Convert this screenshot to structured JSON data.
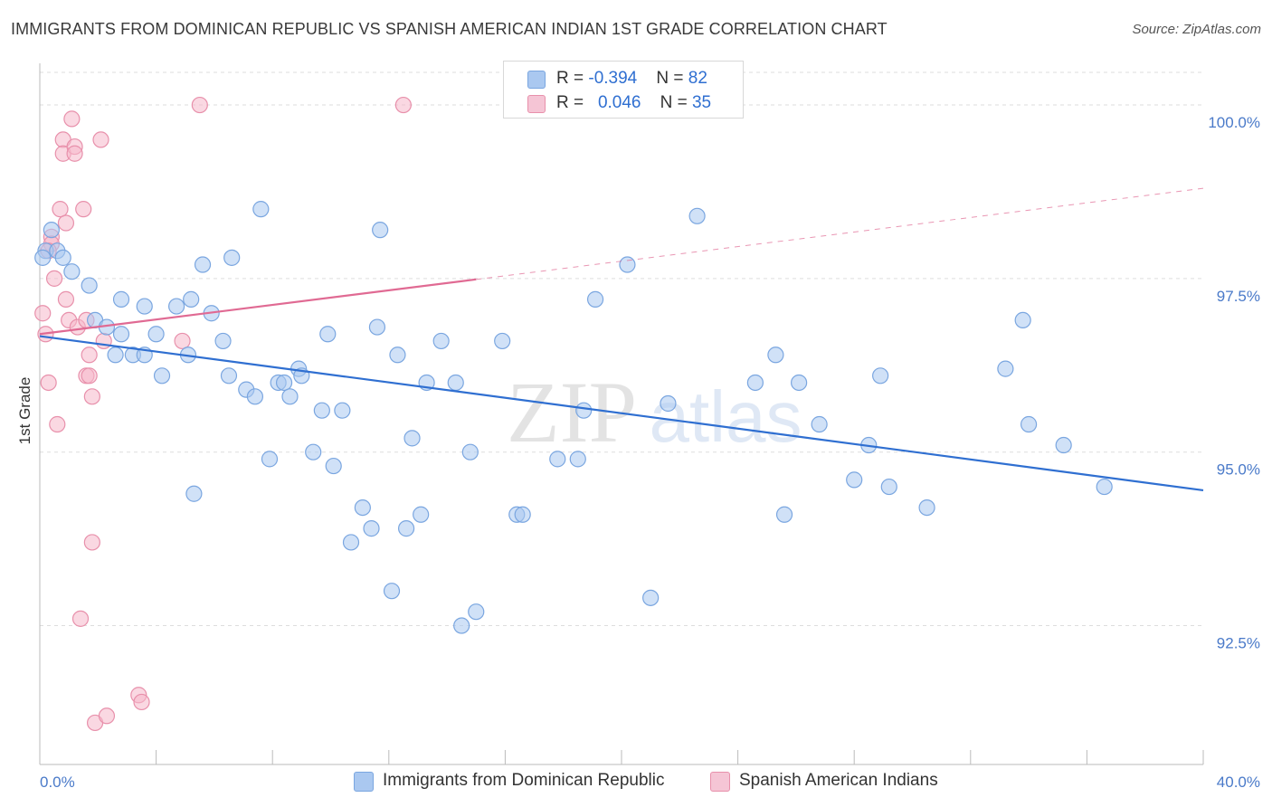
{
  "title": "IMMIGRANTS FROM DOMINICAN REPUBLIC VS SPANISH AMERICAN INDIAN 1ST GRADE CORRELATION CHART",
  "source": "Source: ZipAtlas.com",
  "watermark": {
    "zip": "ZIP",
    "atlas": "atlas"
  },
  "colors": {
    "blue_fill": "#aac8f0",
    "blue_stroke": "#7aa6e0",
    "blue_line": "#2f6fd1",
    "pink_fill": "#f5b8cb",
    "pink_stroke": "#e890ab",
    "pink_line": "#e06a93",
    "tick": "#4a7ac9",
    "grid": "#dddddd"
  },
  "legend": {
    "rows": [
      {
        "r_label": "R = ",
        "r_value": "-0.394",
        "n_label": "N = ",
        "n_value": "82",
        "color": "blue"
      },
      {
        "r_label": "R = ",
        "r_value": "0.046",
        "n_label": "N = ",
        "n_value": "35",
        "color": "pink"
      }
    ]
  },
  "chart_data": {
    "type": "scatter",
    "title": "IMMIGRANTS FROM DOMINICAN REPUBLIC VS SPANISH AMERICAN INDIAN 1ST GRADE CORRELATION CHART",
    "xlabel": "",
    "ylabel": "1st Grade",
    "xlim": [
      0,
      40
    ],
    "ylim": [
      90.5,
      100.6
    ],
    "x_tick_labels": [
      "0.0%",
      "40.0%"
    ],
    "y_ticks": [
      92.5,
      95.0,
      97.5,
      100.0
    ],
    "y_tick_labels": [
      "92.5%",
      "95.0%",
      "97.5%",
      "100.0%"
    ],
    "grid": true,
    "legend_position": "top-center",
    "series": [
      {
        "name": "Immigrants from Dominican Republic",
        "color": "blue",
        "trend": {
          "x0": 0,
          "y0": 96.67,
          "x1": 40,
          "y1": 94.45,
          "dashed_from": null
        },
        "points": [
          [
            0.2,
            97.9
          ],
          [
            0.4,
            98.2
          ],
          [
            0.6,
            97.9
          ],
          [
            0.8,
            97.8
          ],
          [
            1.1,
            97.6
          ],
          [
            1.7,
            97.4
          ],
          [
            1.9,
            96.9
          ],
          [
            2.3,
            96.8
          ],
          [
            2.6,
            96.4
          ],
          [
            2.8,
            96.7
          ],
          [
            2.8,
            97.2
          ],
          [
            3.2,
            96.4
          ],
          [
            3.6,
            96.4
          ],
          [
            3.6,
            97.1
          ],
          [
            4.0,
            96.7
          ],
          [
            4.2,
            96.1
          ],
          [
            4.7,
            97.1
          ],
          [
            5.1,
            96.4
          ],
          [
            5.2,
            97.2
          ],
          [
            5.3,
            94.4
          ],
          [
            5.6,
            97.7
          ],
          [
            5.9,
            97.0
          ],
          [
            6.3,
            96.6
          ],
          [
            6.5,
            96.1
          ],
          [
            6.6,
            97.8
          ],
          [
            7.1,
            95.9
          ],
          [
            7.4,
            95.8
          ],
          [
            7.6,
            98.5
          ],
          [
            7.9,
            94.9
          ],
          [
            8.2,
            96.0
          ],
          [
            8.4,
            96.0
          ],
          [
            8.6,
            95.8
          ],
          [
            8.9,
            96.2
          ],
          [
            9.0,
            96.1
          ],
          [
            9.4,
            95.0
          ],
          [
            9.7,
            95.6
          ],
          [
            9.9,
            96.7
          ],
          [
            10.1,
            94.8
          ],
          [
            10.4,
            95.6
          ],
          [
            10.7,
            93.7
          ],
          [
            11.1,
            94.2
          ],
          [
            11.4,
            93.9
          ],
          [
            11.6,
            96.8
          ],
          [
            11.7,
            98.2
          ],
          [
            12.1,
            93.0
          ],
          [
            12.3,
            96.4
          ],
          [
            12.6,
            93.9
          ],
          [
            12.8,
            95.2
          ],
          [
            13.1,
            94.1
          ],
          [
            13.3,
            96.0
          ],
          [
            13.8,
            96.6
          ],
          [
            14.3,
            96.0
          ],
          [
            14.5,
            92.5
          ],
          [
            14.8,
            95.0
          ],
          [
            15.0,
            92.7
          ],
          [
            15.9,
            96.6
          ],
          [
            16.4,
            94.1
          ],
          [
            16.6,
            94.1
          ],
          [
            17.8,
            94.9
          ],
          [
            18.5,
            94.9
          ],
          [
            18.7,
            95.6
          ],
          [
            19.1,
            97.2
          ],
          [
            20.2,
            97.7
          ],
          [
            21.0,
            92.9
          ],
          [
            21.6,
            95.7
          ],
          [
            22.6,
            98.4
          ],
          [
            24.6,
            96.0
          ],
          [
            25.3,
            96.4
          ],
          [
            25.6,
            94.1
          ],
          [
            26.1,
            96.0
          ],
          [
            26.8,
            95.4
          ],
          [
            28.0,
            94.6
          ],
          [
            28.5,
            95.1
          ],
          [
            28.9,
            96.1
          ],
          [
            29.2,
            94.5
          ],
          [
            30.5,
            94.2
          ],
          [
            33.2,
            96.2
          ],
          [
            33.8,
            96.9
          ],
          [
            34.0,
            95.4
          ],
          [
            35.2,
            95.1
          ],
          [
            36.6,
            94.5
          ],
          [
            0.1,
            97.8
          ]
        ]
      },
      {
        "name": "Spanish American Indians",
        "color": "pink",
        "trend": {
          "x0": 0,
          "y0": 96.7,
          "x1": 40,
          "y1": 98.8,
          "dashed_from": 15.0
        },
        "points": [
          [
            0.1,
            97.0
          ],
          [
            0.2,
            96.7
          ],
          [
            0.3,
            96.0
          ],
          [
            0.4,
            98.1
          ],
          [
            0.4,
            98.0
          ],
          [
            0.5,
            97.5
          ],
          [
            0.6,
            95.4
          ],
          [
            0.7,
            98.5
          ],
          [
            0.8,
            99.5
          ],
          [
            0.8,
            99.3
          ],
          [
            0.9,
            98.3
          ],
          [
            0.9,
            97.2
          ],
          [
            1.0,
            96.9
          ],
          [
            1.1,
            99.8
          ],
          [
            1.2,
            99.4
          ],
          [
            1.2,
            99.3
          ],
          [
            1.3,
            96.8
          ],
          [
            1.4,
            92.6
          ],
          [
            1.5,
            98.5
          ],
          [
            1.6,
            96.9
          ],
          [
            1.6,
            96.1
          ],
          [
            1.7,
            96.1
          ],
          [
            1.7,
            96.4
          ],
          [
            1.8,
            95.8
          ],
          [
            1.8,
            93.7
          ],
          [
            1.9,
            91.1
          ],
          [
            2.1,
            99.5
          ],
          [
            2.2,
            96.6
          ],
          [
            2.3,
            91.2
          ],
          [
            3.4,
            91.5
          ],
          [
            3.5,
            91.4
          ],
          [
            4.9,
            96.6
          ],
          [
            5.5,
            100.0
          ],
          [
            12.5,
            100.0
          ],
          [
            0.3,
            97.9
          ]
        ]
      }
    ]
  },
  "bottom_legend": {
    "blue_label": "Immigrants from Dominican Republic",
    "pink_label": "Spanish American Indians"
  }
}
